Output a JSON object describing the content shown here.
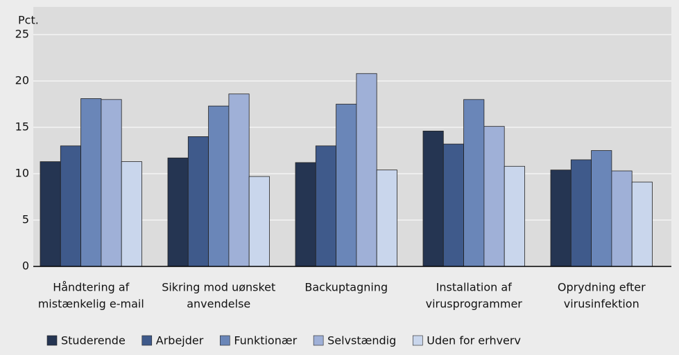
{
  "chart_data": {
    "type": "bar",
    "y_label": "Pct.",
    "categories": [
      [
        "Håndtering af",
        "mistænkelig e-mail"
      ],
      [
        "Sikring mod uønsket",
        "anvendelse"
      ],
      [
        "Backuptagning"
      ],
      [
        "Installation af",
        "virusprogrammer"
      ],
      [
        "Oprydning efter",
        "virusinfektion"
      ]
    ],
    "series": [
      {
        "name": "Studerende",
        "color": "#253552",
        "values": [
          11.3,
          11.7,
          11.2,
          14.6,
          10.4
        ]
      },
      {
        "name": "Arbejder",
        "color": "#3f5a8b",
        "values": [
          13.0,
          14.0,
          13.0,
          13.2,
          11.5
        ]
      },
      {
        "name": "Funktionær",
        "color": "#6a86b8",
        "values": [
          18.1,
          17.3,
          17.5,
          18.0,
          12.5
        ]
      },
      {
        "name": "Selvstændig",
        "color": "#9fb0d7",
        "values": [
          18.0,
          18.6,
          20.8,
          15.1,
          10.3
        ]
      },
      {
        "name": "Uden for erhverv",
        "color": "#c9d6ec",
        "values": [
          11.3,
          9.7,
          10.4,
          10.8,
          9.1
        ]
      }
    ],
    "ylim": [
      0,
      25
    ],
    "yticks": [
      0,
      5,
      10,
      15,
      20,
      25
    ],
    "grid": true,
    "legend": "bottom"
  }
}
